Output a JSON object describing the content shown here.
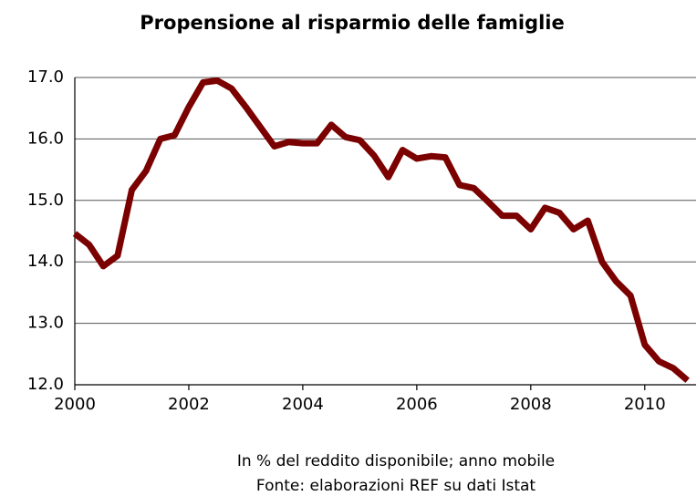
{
  "chart_data": {
    "type": "line",
    "title": "Propensione al risparmio delle famiglie",
    "notes": [
      "In % del reddito disponibile; anno mobile",
      "Fonte: elaborazioni REF su dati Istat"
    ],
    "x": [
      2000,
      2000.25,
      2000.5,
      2000.75,
      2001,
      2001.25,
      2001.5,
      2001.75,
      2002,
      2002.25,
      2002.5,
      2002.75,
      2003,
      2003.25,
      2003.5,
      2003.75,
      2004,
      2004.25,
      2004.5,
      2004.75,
      2005,
      2005.25,
      2005.5,
      2005.75,
      2006,
      2006.25,
      2006.5,
      2006.75,
      2007,
      2007.25,
      2007.5,
      2007.75,
      2008,
      2008.25,
      2008.5,
      2008.75,
      2009,
      2009.25,
      2009.5,
      2009.75,
      2010,
      2010.25,
      2010.5,
      2010.75
    ],
    "series": [
      {
        "name": "Propensione al risparmio",
        "color": "#7b0000",
        "values": [
          14.46,
          14.28,
          13.93,
          14.1,
          15.17,
          15.48,
          16.0,
          16.06,
          16.52,
          16.92,
          16.95,
          16.82,
          16.52,
          16.2,
          15.88,
          15.95,
          15.93,
          15.93,
          16.23,
          16.03,
          15.98,
          15.73,
          15.38,
          15.82,
          15.68,
          15.72,
          15.7,
          15.25,
          15.2,
          14.98,
          14.75,
          14.75,
          14.53,
          14.88,
          14.8,
          14.53,
          14.67,
          14.0,
          13.68,
          13.45,
          12.65,
          12.38,
          12.27,
          12.07
        ]
      }
    ],
    "xlim": [
      2000,
      2010.9
    ],
    "xticks": [
      2000,
      2002,
      2004,
      2006,
      2008,
      2010
    ],
    "ylim": [
      12,
      17
    ],
    "yticks": [
      {
        "value": 12,
        "label": "12.0"
      },
      {
        "value": 13,
        "label": "13.0"
      },
      {
        "value": 14,
        "label": "14.0"
      },
      {
        "value": 15,
        "label": "15.0"
      },
      {
        "value": 16,
        "label": "16.0"
      },
      {
        "value": 17,
        "label": "17.0"
      }
    ],
    "grid": true
  }
}
